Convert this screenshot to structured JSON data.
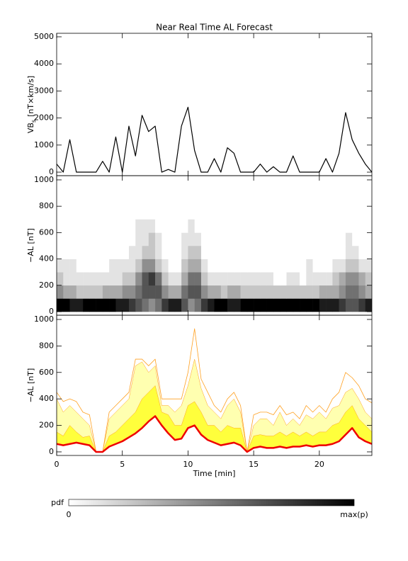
{
  "chart_data": [
    {
      "type": "line",
      "title": "Near Real Time AL Forecast",
      "ylabel": {
        "main": "VB",
        "sub": "s",
        "unit": "[nT×km/s]"
      },
      "xlim": [
        0,
        24
      ],
      "xticks": [
        0,
        5,
        10,
        15,
        20
      ],
      "ylim": [
        -130,
        5130
      ],
      "yticks": [
        0,
        1000,
        2000,
        3000,
        4000,
        5000
      ],
      "x": [
        0,
        0.5,
        1,
        1.5,
        2,
        2.5,
        3,
        3.5,
        4,
        4.5,
        5,
        5.5,
        6,
        6.5,
        7,
        7.5,
        8,
        8.5,
        9,
        9.5,
        10,
        10.5,
        11,
        11.5,
        12,
        12.5,
        13,
        13.5,
        14,
        14.5,
        15,
        15.5,
        16,
        16.5,
        17,
        17.5,
        18,
        18.5,
        19,
        19.5,
        20,
        20.5,
        21,
        21.5,
        22,
        22.5,
        23,
        23.5,
        24
      ],
      "series": [
        {
          "color": "#000000",
          "line_width": 1.2,
          "values": [
            300,
            0,
            1200,
            0,
            0,
            0,
            0,
            400,
            0,
            1300,
            0,
            1700,
            600,
            2100,
            1500,
            1700,
            0,
            100,
            0,
            1700,
            2400,
            800,
            0,
            0,
            500,
            0,
            900,
            700,
            0,
            0,
            0,
            300,
            0,
            200,
            0,
            0,
            600,
            0,
            0,
            0,
            0,
            500,
            0,
            700,
            2200,
            1200,
            700,
            300,
            0
          ]
        }
      ]
    },
    {
      "type": "heatmap",
      "ylabel": "−AL [nT]",
      "xlim": [
        0,
        24
      ],
      "xticks": [
        0,
        5,
        10,
        15,
        20
      ],
      "ylim": [
        -27,
        1032
      ],
      "yticks": [
        0,
        200,
        400,
        600,
        800,
        1000
      ],
      "x_edges": [
        0,
        0.5,
        1,
        1.5,
        2,
        2.5,
        3,
        3.5,
        4,
        4.5,
        5,
        5.5,
        6,
        6.5,
        7,
        7.5,
        8,
        8.5,
        9,
        9.5,
        10,
        10.5,
        11,
        11.5,
        12,
        12.5,
        13,
        13.5,
        14,
        14.5,
        15,
        15.5,
        16,
        16.5,
        17,
        17.5,
        18,
        18.5,
        19,
        19.5,
        20,
        20.5,
        21,
        21.5,
        22,
        22.5,
        23,
        23.5,
        24
      ],
      "y_edges": [
        0,
        100,
        200,
        300,
        400,
        500,
        600,
        700
      ],
      "z": [
        [
          0.9,
          0.9,
          0.8,
          0.8,
          0.9,
          0.9,
          0.9,
          0.9,
          0.9,
          0.8,
          0.8,
          0.7,
          0.6,
          0.5,
          0.4,
          0.5,
          0.7,
          0.8,
          0.8,
          0.6,
          0.4,
          0.5,
          0.7,
          0.8,
          0.9,
          0.9,
          0.8,
          0.8,
          0.9,
          0.9,
          0.9,
          0.9,
          0.9,
          0.9,
          0.9,
          0.9,
          0.9,
          0.9,
          0.9,
          0.9,
          0.8,
          0.8,
          0.8,
          0.7,
          0.6,
          0.6,
          0.7,
          0.8
        ],
        [
          0.4,
          0.3,
          0.3,
          0.2,
          0.2,
          0.2,
          0.2,
          0.3,
          0.3,
          0.3,
          0.4,
          0.4,
          0.5,
          0.6,
          0.6,
          0.6,
          0.4,
          0.3,
          0.3,
          0.5,
          0.6,
          0.6,
          0.4,
          0.3,
          0.3,
          0.2,
          0.3,
          0.3,
          0.2,
          0.2,
          0.2,
          0.2,
          0.2,
          0.2,
          0.2,
          0.2,
          0.2,
          0.2,
          0.2,
          0.2,
          0.3,
          0.3,
          0.3,
          0.4,
          0.5,
          0.5,
          0.4,
          0.3
        ],
        [
          0.2,
          0.1,
          0.1,
          0.1,
          0.1,
          0.1,
          0.1,
          0.1,
          0.1,
          0.1,
          0.2,
          0.2,
          0.4,
          0.6,
          0.7,
          0.5,
          0.2,
          0.1,
          0.1,
          0.3,
          0.5,
          0.5,
          0.2,
          0.1,
          0.1,
          0.1,
          0.1,
          0.1,
          0.1,
          0.1,
          0.1,
          0.1,
          0.1,
          0,
          0,
          0.1,
          0.1,
          0,
          0.1,
          0.1,
          0.1,
          0.1,
          0.2,
          0.3,
          0.4,
          0.4,
          0.3,
          0.2
        ],
        [
          0.1,
          0.1,
          0.1,
          0,
          0,
          0,
          0,
          0,
          0.1,
          0.1,
          0.1,
          0.1,
          0.2,
          0.4,
          0.4,
          0.2,
          0.1,
          0,
          0,
          0.2,
          0.3,
          0.3,
          0.1,
          0,
          0,
          0,
          0,
          0,
          0,
          0,
          0,
          0,
          0,
          0,
          0,
          0,
          0,
          0,
          0.1,
          0,
          0,
          0,
          0.1,
          0.1,
          0.2,
          0.2,
          0.1,
          0.1
        ],
        [
          0,
          0,
          0,
          0,
          0,
          0,
          0,
          0,
          0,
          0,
          0,
          0.1,
          0.1,
          0.2,
          0.2,
          0.1,
          0,
          0,
          0,
          0.1,
          0.2,
          0.2,
          0,
          0,
          0,
          0,
          0,
          0,
          0,
          0,
          0,
          0,
          0,
          0,
          0,
          0,
          0,
          0,
          0,
          0,
          0,
          0,
          0,
          0,
          0.1,
          0.1,
          0,
          0
        ],
        [
          0,
          0,
          0,
          0,
          0,
          0,
          0,
          0,
          0,
          0,
          0,
          0,
          0.1,
          0.1,
          0.2,
          0.1,
          0,
          0,
          0,
          0.1,
          0.1,
          0.1,
          0,
          0,
          0,
          0,
          0,
          0,
          0,
          0,
          0,
          0,
          0,
          0,
          0,
          0,
          0,
          0,
          0,
          0,
          0,
          0,
          0,
          0,
          0.1,
          0,
          0,
          0
        ],
        [
          0,
          0,
          0,
          0,
          0,
          0,
          0,
          0,
          0,
          0,
          0,
          0,
          0.1,
          0.1,
          0.1,
          0,
          0,
          0,
          0,
          0,
          0.1,
          0,
          0,
          0,
          0,
          0,
          0,
          0,
          0,
          0,
          0,
          0,
          0,
          0,
          0,
          0,
          0,
          0,
          0,
          0,
          0,
          0,
          0,
          0,
          0,
          0,
          0,
          0
        ]
      ],
      "colorbar": {
        "label": "pdf",
        "min_label": "0",
        "max_label": "max(p)"
      }
    },
    {
      "type": "line",
      "ylabel": "−AL [nT]",
      "xlabel": "Time [min]",
      "xlim": [
        0,
        24
      ],
      "xticks": [
        0,
        5,
        10,
        15,
        20
      ],
      "ylim": [
        -27,
        1032
      ],
      "yticks": [
        0,
        200,
        400,
        600,
        800,
        1000
      ],
      "x": [
        0,
        0.5,
        1,
        1.5,
        2,
        2.5,
        3,
        3.5,
        4,
        4.5,
        5,
        5.5,
        6,
        6.5,
        7,
        7.5,
        8,
        8.5,
        9,
        9.5,
        10,
        10.5,
        11,
        11.5,
        12,
        12.5,
        13,
        13.5,
        14,
        14.5,
        15,
        15.5,
        16,
        16.5,
        17,
        17.5,
        18,
        18.5,
        19,
        19.5,
        20,
        20.5,
        21,
        21.5,
        22,
        22.5,
        23,
        23.5,
        24
      ],
      "series": [
        {
          "color": "#ffffb0",
          "fill": true,
          "values": [
            400,
            300,
            350,
            300,
            250,
            200,
            0,
            0,
            250,
            300,
            350,
            400,
            650,
            680,
            600,
            650,
            350,
            350,
            300,
            350,
            500,
            700,
            480,
            350,
            300,
            250,
            350,
            400,
            300,
            0,
            200,
            250,
            250,
            200,
            300,
            200,
            250,
            200,
            280,
            250,
            300,
            250,
            330,
            350,
            450,
            480,
            400,
            300,
            250
          ]
        },
        {
          "color": "#ffff3c",
          "fill": true,
          "values": [
            150,
            120,
            200,
            150,
            110,
            120,
            0,
            0,
            120,
            150,
            200,
            250,
            300,
            400,
            450,
            500,
            300,
            280,
            200,
            200,
            350,
            380,
            300,
            200,
            200,
            150,
            200,
            180,
            180,
            0,
            120,
            130,
            120,
            120,
            150,
            120,
            150,
            120,
            150,
            120,
            150,
            150,
            200,
            220,
            300,
            350,
            250,
            200,
            150
          ]
        },
        {
          "color": "#ffa020",
          "line_width": 0.8,
          "values": [
            450,
            380,
            400,
            380,
            300,
            280,
            0,
            0,
            300,
            350,
            400,
            450,
            700,
            700,
            650,
            700,
            400,
            400,
            400,
            400,
            600,
            930,
            550,
            450,
            350,
            300,
            400,
            450,
            350,
            0,
            280,
            300,
            300,
            280,
            350,
            280,
            300,
            250,
            350,
            300,
            350,
            300,
            400,
            450,
            600,
            560,
            500,
            400,
            370
          ]
        },
        {
          "color": "#ee0000",
          "line_width": 2.5,
          "values": [
            60,
            50,
            60,
            70,
            60,
            50,
            0,
            0,
            40,
            60,
            80,
            110,
            140,
            180,
            230,
            270,
            200,
            140,
            90,
            100,
            180,
            200,
            130,
            90,
            70,
            50,
            60,
            70,
            50,
            0,
            30,
            40,
            30,
            30,
            40,
            30,
            40,
            40,
            50,
            40,
            50,
            50,
            60,
            80,
            130,
            180,
            110,
            80,
            60
          ]
        }
      ]
    }
  ]
}
